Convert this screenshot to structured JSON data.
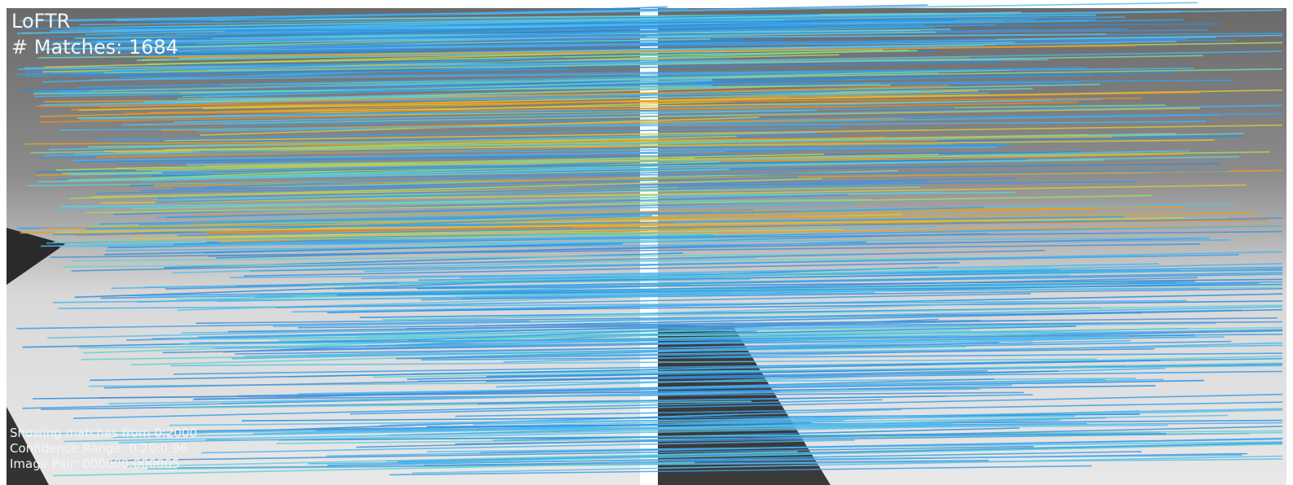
{
  "header": {
    "method": "LoFTR",
    "matches": "# Matches: 1684"
  },
  "footer": {
    "range": "Showing matches from 0:2000",
    "confidence": "Confidence Range: 0.20:0.96",
    "pair": "Image Pair: 000000:000005"
  }
}
